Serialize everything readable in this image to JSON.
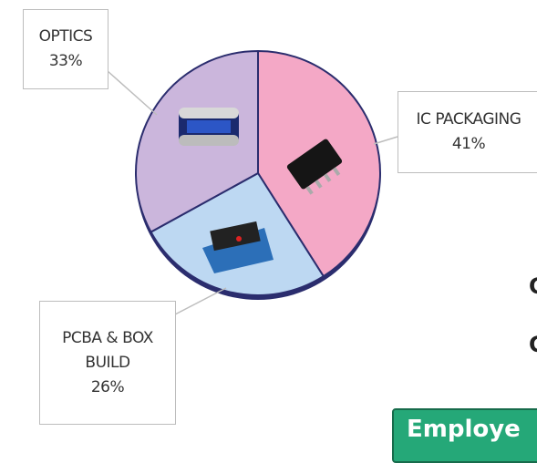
{
  "chart_data": {
    "type": "pie",
    "categories": [
      "IC PACKAGING",
      "PCBA & BOX BUILD",
      "OPTICS"
    ],
    "values": [
      41,
      26,
      33
    ],
    "value_labels": [
      "41%",
      "26%",
      "33%"
    ],
    "colors": [
      "#f4a8c6",
      "#bdd8f2",
      "#cbb6dc"
    ],
    "annotations": [
      "C",
      "C",
      "Employe"
    ]
  }
}
